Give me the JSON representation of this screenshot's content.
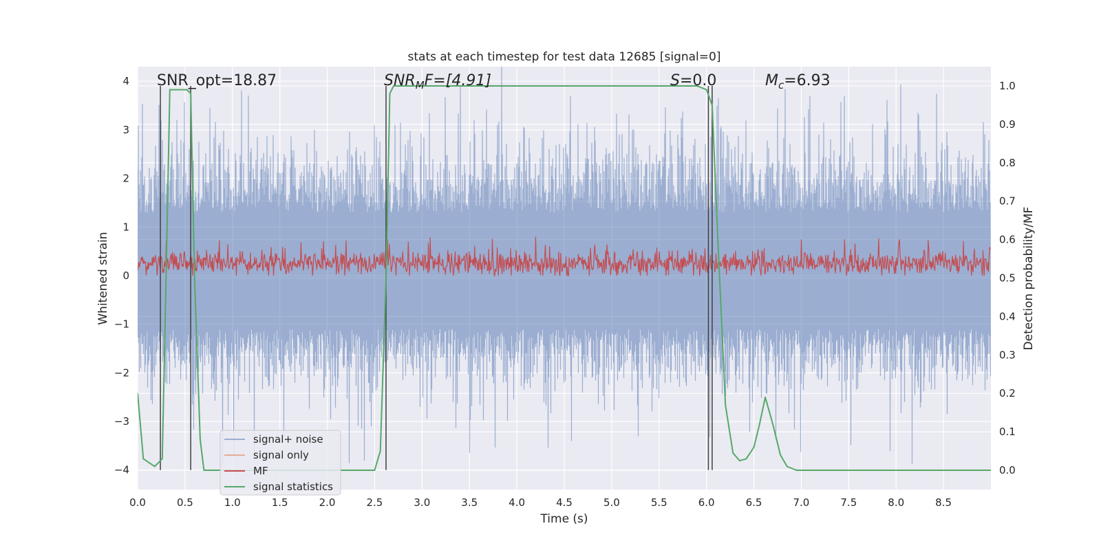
{
  "chart_data": {
    "type": "line",
    "title": "stats at each timestep for test data 12685 [signal=0]",
    "xlabel": "Time (s)",
    "ylabel_left": "Whitened strain",
    "ylabel_right": "Detection probability/MF",
    "xlim": [
      0,
      9.0
    ],
    "ylim_left": [
      -4.4,
      4.3
    ],
    "ylim_right": [
      -0.05,
      1.05
    ],
    "xticks": [
      0.0,
      0.5,
      1.0,
      1.5,
      2.0,
      2.5,
      3.0,
      3.5,
      4.0,
      4.5,
      5.0,
      5.5,
      6.0,
      6.5,
      7.0,
      7.5,
      8.0,
      8.5
    ],
    "xtick_labels": [
      "0.0",
      "0.5",
      "1.0",
      "1.5",
      "2.0",
      "2.5",
      "3.0",
      "3.5",
      "4.0",
      "4.5",
      "5.0",
      "5.5",
      "6.0",
      "6.5",
      "7.0",
      "7.5",
      "8.0",
      "8.5"
    ],
    "yticks_left": [
      -4,
      -3,
      -2,
      -1,
      0,
      1,
      2,
      3,
      4
    ],
    "ytick_labels_left": [
      "−4",
      "−3",
      "−2",
      "−1",
      "0",
      "1",
      "2",
      "3",
      "4"
    ],
    "yticks_right": [
      0.0,
      0.1,
      0.2,
      0.3,
      0.4,
      0.5,
      0.6,
      0.7,
      0.8,
      0.9,
      1.0
    ],
    "ytick_labels_right": [
      "0.0",
      "0.1",
      "0.2",
      "0.3",
      "0.4",
      "0.5",
      "0.6",
      "0.7",
      "0.8",
      "0.9",
      "1.0"
    ],
    "grid": true,
    "legend_position": "bottom-left",
    "series": [
      {
        "name": "signal+ noise",
        "axis": "left",
        "color": "#4c72b0",
        "style": "dense noise band",
        "noise_envelope": {
          "typical_max": 2.4,
          "typical_min": -1.9,
          "peak_max": 3.95,
          "peak_min": -3.9
        }
      },
      {
        "name": "signal only",
        "axis": "left",
        "color": "#dd8452",
        "values_note": "not visible (zero signal)"
      },
      {
        "name": "MF",
        "axis": "left",
        "color": "#c44e52",
        "style": "dense noise band",
        "noise_envelope": {
          "baseline": 0.0,
          "typical_max": 0.5,
          "peak_max": 1.0
        }
      },
      {
        "name": "signal statistics",
        "axis": "right",
        "color": "#55a868",
        "x": [
          0.0,
          0.06,
          0.18,
          0.26,
          0.3,
          0.34,
          0.4,
          0.46,
          0.52,
          0.56,
          0.6,
          0.66,
          0.7,
          0.8,
          1.5,
          2.5,
          2.56,
          2.62,
          2.66,
          2.7,
          3.5,
          4.5,
          5.5,
          5.9,
          6.0,
          6.06,
          6.12,
          6.2,
          6.28,
          6.35,
          6.42,
          6.5,
          6.56,
          6.62,
          6.7,
          6.78,
          6.85,
          6.95,
          7.5,
          8.5,
          9.0
        ],
        "values": [
          0.2,
          0.03,
          0.01,
          0.03,
          0.5,
          0.99,
          0.99,
          0.99,
          0.99,
          0.98,
          0.5,
          0.08,
          0.0,
          0.0,
          0.0,
          0.0,
          0.05,
          0.5,
          0.98,
          1.0,
          1.0,
          1.0,
          1.0,
          1.0,
          0.99,
          0.95,
          0.6,
          0.17,
          0.045,
          0.025,
          0.03,
          0.06,
          0.12,
          0.19,
          0.12,
          0.04,
          0.01,
          0.0,
          0.0,
          0.0,
          0.0
        ]
      }
    ],
    "vertical_lines": [
      {
        "x": 0.24,
        "color": "#404040"
      },
      {
        "x": 0.56,
        "color": "#404040"
      },
      {
        "x": 2.62,
        "color": "#404040"
      },
      {
        "x": 6.02,
        "color": "#404040"
      },
      {
        "x": 6.06,
        "color": "#404040"
      }
    ],
    "annotations": {
      "snr_opt": "SNR_opt=18.87",
      "snr_mf_var": "SNR",
      "snr_mf_sub": "M",
      "snr_mf_rest": "F=[4.91]",
      "s_var": "S",
      "s_rest": "=0.0",
      "mc_var": "M",
      "mc_sub": "c",
      "mc_rest": "=6.93"
    },
    "colors": {
      "plot_background": "#eaeaf2",
      "grid": "#ffffff"
    }
  }
}
